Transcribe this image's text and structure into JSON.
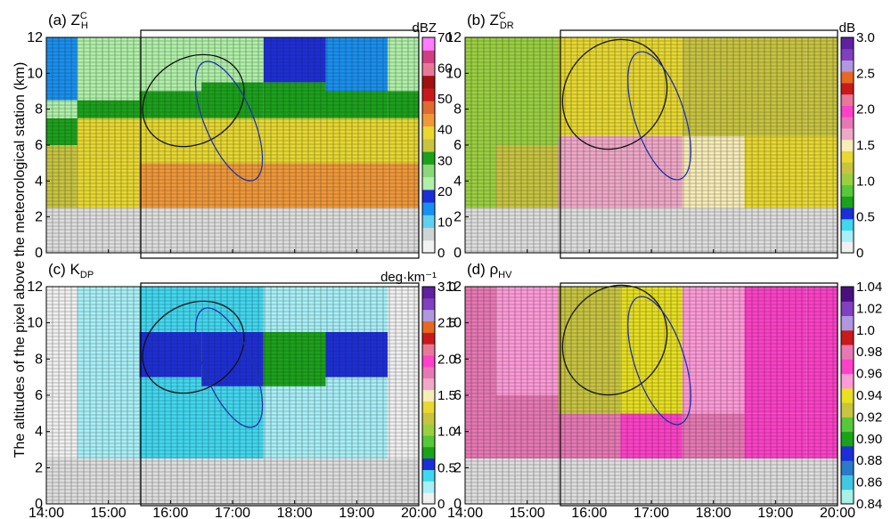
{
  "figure": {
    "ylabel": "The altitudes of the pixel above the meteorological station (km)"
  },
  "chart_data": [
    {
      "type": "heatmap",
      "panel": "(a)",
      "title": "(a) Z",
      "title_sup": "C",
      "title_sub": "H",
      "unit": "dBZ",
      "x_ticks": [
        "14:00",
        "15:00",
        "16:00",
        "17:00",
        "18:00",
        "19:00",
        "20:00"
      ],
      "y_ticks": [
        "0",
        "2",
        "4",
        "6",
        "8",
        "10",
        "12"
      ],
      "ylim": [
        0,
        12
      ],
      "colorbar_ticks": [
        "0",
        "10",
        "20",
        "30",
        "40",
        "50",
        "60",
        "70"
      ],
      "colorbar_range": [
        0,
        70
      ],
      "colors": [
        "#f2f2f2",
        "#ccd4d4",
        "#5fd0f0",
        "#1890ef",
        "#1c2ed8",
        "#b0f0a8",
        "#8ad878",
        "#1aa21a",
        "#c8c440",
        "#e8d830",
        "#f09838",
        "#e26a30",
        "#c81a1a",
        "#a21010",
        "#e8789a",
        "#d04080",
        "#ff7cff"
      ],
      "no_data_below_km": 2.5,
      "columns": [
        {
          "time": "14:00",
          "profile": [
            {
              "top_km": 6.0,
              "value": 37
            },
            {
              "top_km": 7.5,
              "value": 32
            },
            {
              "top_km": 8.5,
              "value": 24
            },
            {
              "top_km": 12.0,
              "value": 15
            }
          ]
        },
        {
          "time": "15:00",
          "profile": [
            {
              "top_km": 5.5,
              "value": 40
            },
            {
              "top_km": 7.5,
              "value": 38
            },
            {
              "top_km": 8.5,
              "value": 30
            },
            {
              "top_km": 12.0,
              "value": 22
            }
          ]
        },
        {
          "time": "16:00",
          "profile": [
            {
              "top_km": 5.0,
              "value": 44
            },
            {
              "top_km": 7.5,
              "value": 38
            },
            {
              "top_km": 9.0,
              "value": 30
            },
            {
              "top_km": 12.0,
              "value": 21
            }
          ]
        },
        {
          "time": "17:00",
          "profile": [
            {
              "top_km": 5.0,
              "value": 44
            },
            {
              "top_km": 7.5,
              "value": 38
            },
            {
              "top_km": 9.5,
              "value": 30
            },
            {
              "top_km": 12.0,
              "value": 22
            }
          ]
        },
        {
          "time": "18:00",
          "profile": [
            {
              "top_km": 5.0,
              "value": 45
            },
            {
              "top_km": 7.5,
              "value": 38
            },
            {
              "top_km": 9.5,
              "value": 30
            },
            {
              "top_km": 12.0,
              "value": 20
            }
          ]
        },
        {
          "time": "19:00",
          "profile": [
            {
              "top_km": 5.0,
              "value": 44
            },
            {
              "top_km": 7.5,
              "value": 38
            },
            {
              "top_km": 9.0,
              "value": 30
            },
            {
              "top_km": 12.0,
              "value": 16
            }
          ]
        },
        {
          "time": "20:00",
          "profile": [
            {
              "top_km": 5.0,
              "value": 44
            },
            {
              "top_km": 7.5,
              "value": 38
            },
            {
              "top_km": 9.0,
              "value": 30
            },
            {
              "top_km": 12.0,
              "value": 22
            }
          ]
        }
      ]
    },
    {
      "type": "heatmap",
      "panel": "(b)",
      "title": "(b) Z",
      "title_sup": "C",
      "title_sub": "DR",
      "unit": "dB",
      "x_ticks": [
        "14:00",
        "15:00",
        "16:00",
        "17:00",
        "18:00",
        "19:00",
        "20:00"
      ],
      "y_ticks": [
        "0",
        "2",
        "4",
        "6",
        "8",
        "10",
        "12"
      ],
      "ylim": [
        0,
        12
      ],
      "colorbar_ticks": [
        "0",
        "0.5",
        "1.0",
        "1.5",
        "2.0",
        "2.5",
        "3.0"
      ],
      "colorbar_range": [
        0,
        3.0
      ],
      "colors": [
        "#f0f0f0",
        "#a8f0f8",
        "#40d8f0",
        "#1c2ed8",
        "#1aa21a",
        "#56c83a",
        "#9ad040",
        "#c8c440",
        "#e8d830",
        "#f8ecb8",
        "#f0a8c8",
        "#e878b4",
        "#ff40c8",
        "#e8789a",
        "#c81a1a",
        "#e86820",
        "#b098e0",
        "#8040c0",
        "#6020a0"
      ],
      "no_data_below_km": 2.5,
      "columns": [
        {
          "time": "14:00",
          "profile": [
            {
              "top_km": 6.0,
              "value": 0.95
            },
            {
              "top_km": 12.0,
              "value": 1.1
            }
          ]
        },
        {
          "time": "15:00",
          "profile": [
            {
              "top_km": 6.0,
              "value": 1.25
            },
            {
              "top_km": 12.0,
              "value": 1.1
            }
          ]
        },
        {
          "time": "16:00",
          "profile": [
            {
              "top_km": 6.5,
              "value": 1.6
            },
            {
              "top_km": 12.0,
              "value": 1.3
            }
          ]
        },
        {
          "time": "17:00",
          "profile": [
            {
              "top_km": 6.5,
              "value": 1.7
            },
            {
              "top_km": 12.0,
              "value": 1.35
            }
          ]
        },
        {
          "time": "18:00",
          "profile": [
            {
              "top_km": 6.5,
              "value": 1.45
            },
            {
              "top_km": 12.0,
              "value": 1.25
            }
          ]
        },
        {
          "time": "19:00",
          "profile": [
            {
              "top_km": 6.5,
              "value": 1.4
            },
            {
              "top_km": 12.0,
              "value": 1.2
            }
          ]
        },
        {
          "time": "20:00",
          "profile": [
            {
              "top_km": 6.5,
              "value": 1.35
            },
            {
              "top_km": 12.0,
              "value": 1.15
            }
          ]
        }
      ]
    },
    {
      "type": "heatmap",
      "panel": "(c)",
      "title": "(c) K",
      "title_sup": "",
      "title_sub": "DP",
      "unit": "deg·km⁻¹",
      "x_ticks": [
        "14:00",
        "15:00",
        "16:00",
        "17:00",
        "18:00",
        "19:00",
        "20:00"
      ],
      "y_ticks": [
        "0",
        "2",
        "4",
        "6",
        "8",
        "10",
        "12"
      ],
      "ylim": [
        0,
        12
      ],
      "colorbar_ticks": [
        "0",
        "0.5",
        "1.0",
        "1.5",
        "2.0",
        "2.5",
        "3.0"
      ],
      "colorbar_range": [
        0,
        3.0
      ],
      "colors": [
        "#f0f0f0",
        "#a8f0f8",
        "#40d8f0",
        "#1c2ed8",
        "#1aa21a",
        "#56c83a",
        "#9ad040",
        "#c8c440",
        "#e8d830",
        "#f8ecb8",
        "#f0a8c8",
        "#e878b4",
        "#ff40c8",
        "#e8789a",
        "#c81a1a",
        "#e86820",
        "#b098e0",
        "#8040c0",
        "#6020a0"
      ],
      "no_data_below_km": 2.5,
      "columns": [
        {
          "time": "14:00",
          "profile": [
            {
              "top_km": 12.0,
              "value": 0.1
            }
          ]
        },
        {
          "time": "15:00",
          "profile": [
            {
              "top_km": 12.0,
              "value": 0.3
            }
          ]
        },
        {
          "time": "16:00",
          "profile": [
            {
              "top_km": 7.0,
              "value": 0.35
            },
            {
              "top_km": 9.5,
              "value": 0.6
            },
            {
              "top_km": 12.0,
              "value": 0.4
            }
          ]
        },
        {
          "time": "17:00",
          "profile": [
            {
              "top_km": 6.5,
              "value": 0.35
            },
            {
              "top_km": 9.5,
              "value": 0.55
            },
            {
              "top_km": 12.0,
              "value": 0.35
            }
          ]
        },
        {
          "time": "18:00",
          "profile": [
            {
              "top_km": 6.5,
              "value": 0.3
            },
            {
              "top_km": 9.5,
              "value": 0.7
            },
            {
              "top_km": 12.0,
              "value": 0.3
            }
          ]
        },
        {
          "time": "19:00",
          "profile": [
            {
              "top_km": 7.0,
              "value": 0.25
            },
            {
              "top_km": 9.5,
              "value": 0.6
            },
            {
              "top_km": 12.0,
              "value": 0.3
            }
          ]
        },
        {
          "time": "20:00",
          "profile": [
            {
              "top_km": 12.0,
              "value": 0.15
            }
          ]
        }
      ]
    },
    {
      "type": "heatmap",
      "panel": "(d)",
      "title": "(d) ρ",
      "title_sup": "",
      "title_sub": "HV",
      "unit": "",
      "x_ticks": [
        "14:00",
        "15:00",
        "16:00",
        "17:00",
        "18:00",
        "19:00",
        "20:00"
      ],
      "y_ticks": [
        "0",
        "2",
        "4",
        "6",
        "8",
        "10",
        "12"
      ],
      "ylim": [
        0,
        12
      ],
      "colorbar_ticks": [
        "0.84",
        "0.86",
        "0.88",
        "0.90",
        "0.92",
        "0.94",
        "0.96",
        "0.98",
        "1.0",
        "1.02",
        "1.04"
      ],
      "colorbar_range": [
        0.84,
        1.04
      ],
      "colors": [
        "#a8f0e8",
        "#40c8e0",
        "#2a7ac8",
        "#1c2ed8",
        "#1aa21a",
        "#56c83a",
        "#c8c440",
        "#e8e020",
        "#ff9ad8",
        "#ff40c8",
        "#e878b4",
        "#c81a1a",
        "#b098e0",
        "#8040c0",
        "#4a1080"
      ],
      "no_data_below_km": 2.5,
      "columns": [
        {
          "time": "14:00",
          "profile": [
            {
              "top_km": 12.0,
              "value": 0.975
            }
          ]
        },
        {
          "time": "15:00",
          "profile": [
            {
              "top_km": 6.0,
              "value": 0.975
            },
            {
              "top_km": 12.0,
              "value": 0.955
            }
          ]
        },
        {
          "time": "16:00",
          "profile": [
            {
              "top_km": 5.0,
              "value": 0.975
            },
            {
              "top_km": 12.0,
              "value": 0.93
            }
          ]
        },
        {
          "time": "17:00",
          "profile": [
            {
              "top_km": 5.0,
              "value": 0.97
            },
            {
              "top_km": 12.0,
              "value": 0.935
            }
          ]
        },
        {
          "time": "18:00",
          "profile": [
            {
              "top_km": 5.0,
              "value": 0.975
            },
            {
              "top_km": 12.0,
              "value": 0.95
            }
          ]
        },
        {
          "time": "19:00",
          "profile": [
            {
              "top_km": 5.0,
              "value": 0.965
            },
            {
              "top_km": 12.0,
              "value": 0.965
            }
          ]
        },
        {
          "time": "20:00",
          "profile": [
            {
              "top_km": 5.0,
              "value": 0.97
            },
            {
              "top_km": 12.0,
              "value": 0.97
            }
          ]
        }
      ]
    }
  ]
}
